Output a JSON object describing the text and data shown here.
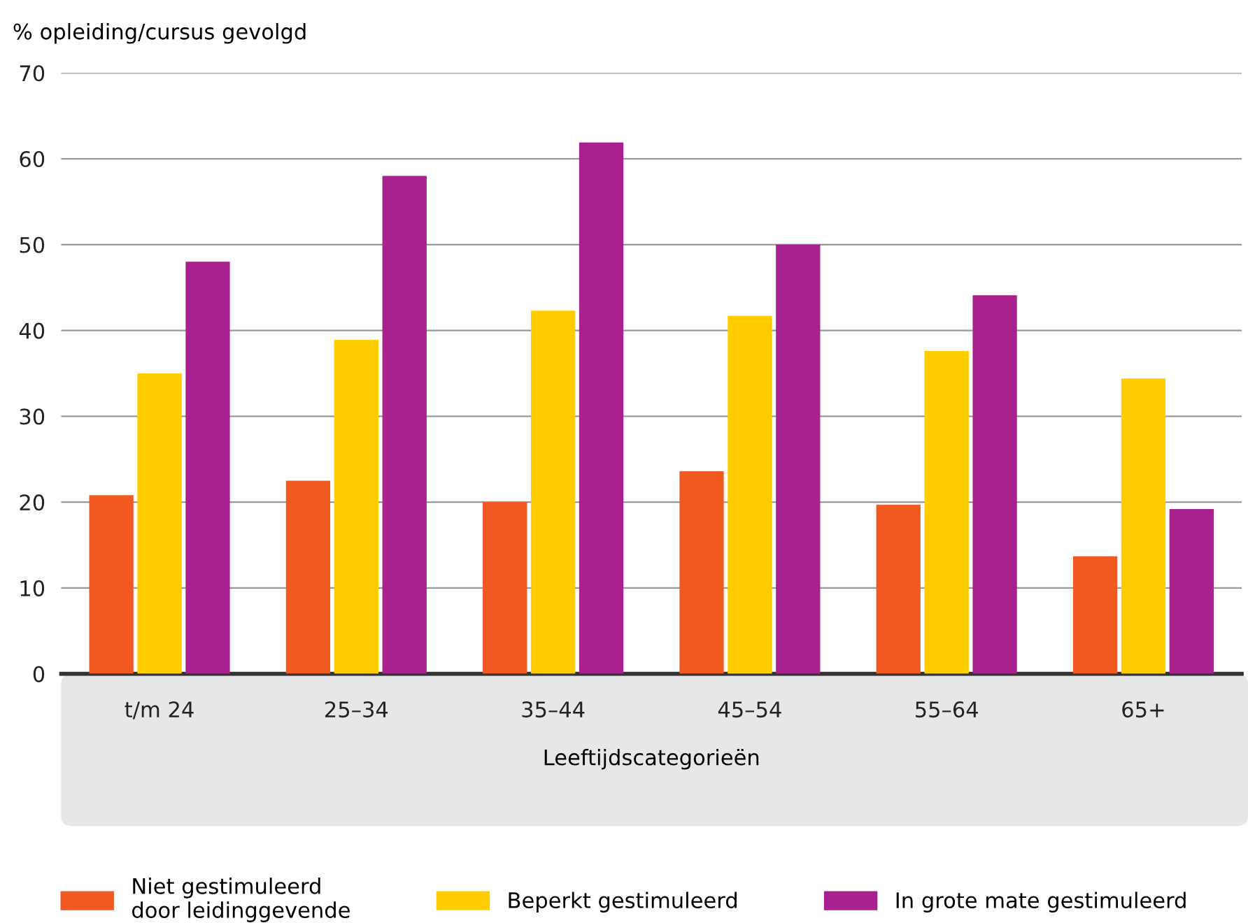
{
  "chart_data": {
    "type": "bar",
    "ylabel": "% opleiding/cursus gevolgd",
    "xlabel": "Leeftijdscategorieën",
    "categories": [
      "t/m 24",
      "25–34",
      "35–44",
      "45–54",
      "55–64",
      "65+"
    ],
    "series": [
      {
        "name": "Niet gestimuleerd\ndoor leidinggevende",
        "color": "#f05a22",
        "values": [
          20.8,
          22.5,
          20.0,
          23.6,
          19.7,
          13.7
        ]
      },
      {
        "name": "Beperkt gestimuleerd",
        "color": "#ffcc00",
        "values": [
          35.0,
          38.9,
          42.3,
          41.7,
          37.6,
          34.4
        ]
      },
      {
        "name": "In grote mate gestimuleerd",
        "color": "#a8218e",
        "values": [
          48.0,
          58.0,
          61.9,
          50.0,
          44.1,
          19.2
        ]
      }
    ],
    "ylim": [
      0,
      70
    ],
    "yticks": [
      0,
      10,
      20,
      30,
      40,
      50,
      60,
      70
    ],
    "grid": "y",
    "legend": "bottom"
  }
}
